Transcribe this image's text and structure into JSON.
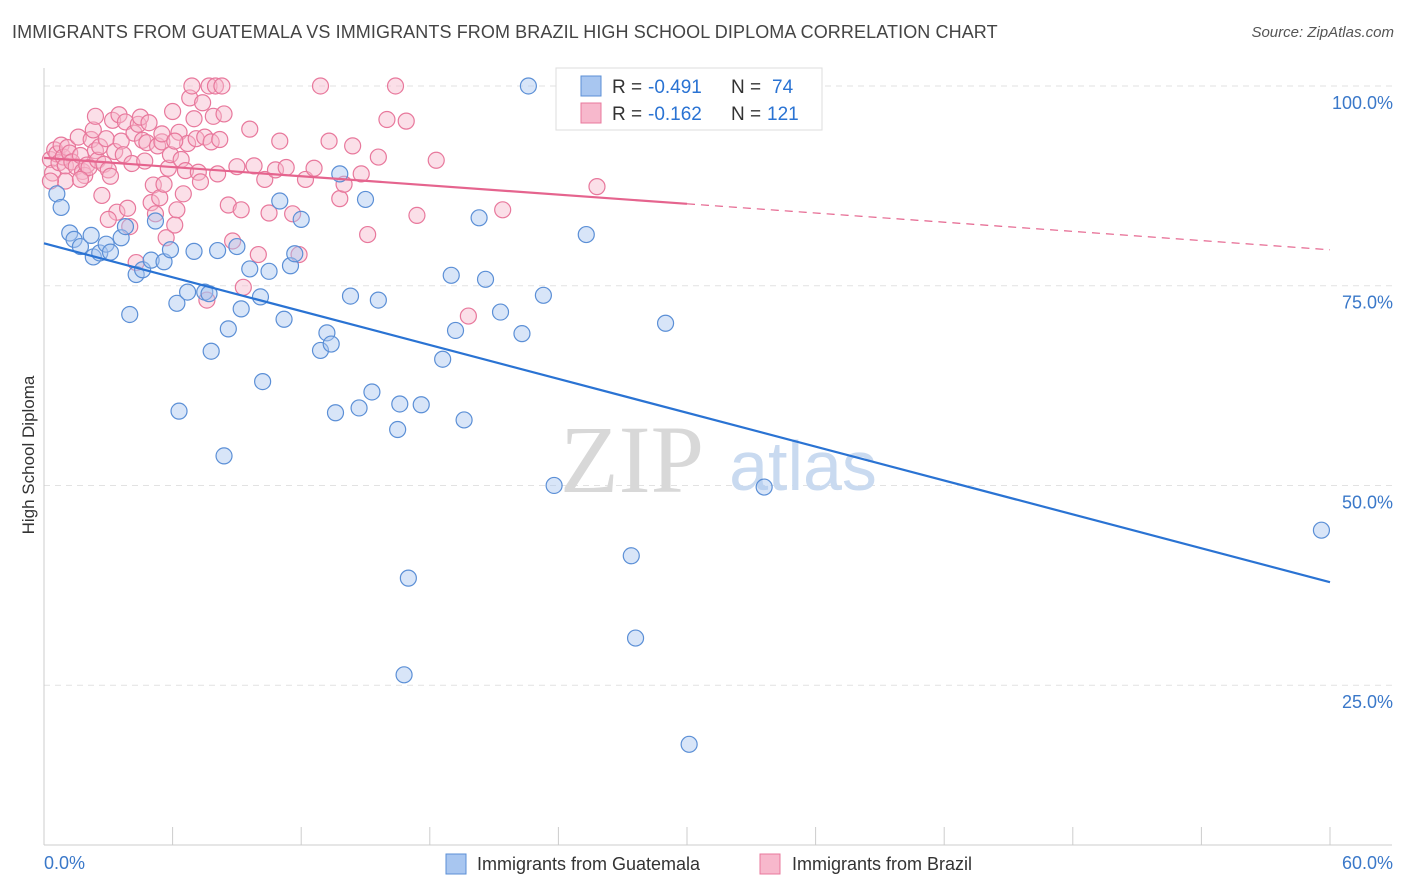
{
  "title": "IMMIGRANTS FROM GUATEMALA VS IMMIGRANTS FROM BRAZIL HIGH SCHOOL DIPLOMA CORRELATION CHART",
  "source": "Source: ZipAtlas.com",
  "watermark": {
    "zip": "ZIP",
    "atlas": "atlas"
  },
  "colors": {
    "blue_fill": "#a8c6f0",
    "blue_stroke": "#5b8fd6",
    "blue_line": "#2a73d3",
    "pink_fill": "#f7b8cc",
    "pink_stroke": "#e8789c",
    "pink_line": "#e5648e",
    "axis_label": "#3a78c9",
    "grid": "#e2e2e2"
  },
  "legend": {
    "rows": [
      {
        "r_label": "R =",
        "r_value": "-0.491",
        "n_label": "N =",
        "n_value": "74",
        "color": "blue"
      },
      {
        "r_label": "R =",
        "r_value": "-0.162",
        "n_label": "N =",
        "n_value": "121",
        "color": "pink"
      }
    ]
  },
  "chart_data": {
    "type": "scatter",
    "title": "IMMIGRANTS FROM GUATEMALA VS IMMIGRANTS FROM BRAZIL HIGH SCHOOL DIPLOMA CORRELATION CHART",
    "xlabel": "",
    "ylabel": "High School Diploma",
    "xlim": [
      0,
      60
    ],
    "ylim": [
      5,
      103
    ],
    "x_tick_labels": [
      "0.0%",
      "60.0%"
    ],
    "y_ticks": [
      25,
      50,
      75,
      100
    ],
    "y_tick_labels": [
      "25.0%",
      "50.0%",
      "75.0%",
      "100.0%"
    ],
    "grid": true,
    "legend_position": "bottom",
    "series": [
      {
        "name": "Immigrants from Guatemala",
        "color": "blue",
        "trend": {
          "x": [
            0,
            60
          ],
          "y": [
            80.3,
            37.9
          ],
          "solid_until": 60
        },
        "points": [
          [
            0.6,
            86.5
          ],
          [
            0.8,
            84.8
          ],
          [
            1.2,
            81.6
          ],
          [
            1.4,
            80.8
          ],
          [
            1.7,
            79.9
          ],
          [
            2.2,
            81.3
          ],
          [
            2.3,
            78.6
          ],
          [
            2.6,
            79.1
          ],
          [
            2.9,
            80.2
          ],
          [
            3.1,
            79.2
          ],
          [
            3.6,
            81.0
          ],
          [
            3.8,
            82.4
          ],
          [
            4.0,
            71.4
          ],
          [
            4.3,
            76.4
          ],
          [
            4.6,
            77.0
          ],
          [
            5.0,
            78.2
          ],
          [
            5.2,
            83.1
          ],
          [
            5.6,
            78.0
          ],
          [
            5.9,
            79.5
          ],
          [
            6.2,
            72.8
          ],
          [
            6.3,
            59.3
          ],
          [
            6.7,
            74.2
          ],
          [
            7.0,
            79.3
          ],
          [
            7.5,
            74.2
          ],
          [
            7.7,
            74.0
          ],
          [
            7.8,
            66.8
          ],
          [
            8.1,
            79.4
          ],
          [
            8.4,
            53.7
          ],
          [
            8.6,
            69.6
          ],
          [
            9.0,
            79.9
          ],
          [
            9.2,
            72.1
          ],
          [
            9.6,
            77.1
          ],
          [
            10.1,
            73.6
          ],
          [
            10.2,
            63.0
          ],
          [
            10.5,
            76.8
          ],
          [
            11.0,
            85.6
          ],
          [
            11.2,
            70.8
          ],
          [
            11.5,
            77.5
          ],
          [
            11.7,
            79.0
          ],
          [
            12.0,
            83.3
          ],
          [
            12.9,
            66.9
          ],
          [
            13.2,
            69.1
          ],
          [
            13.4,
            67.7
          ],
          [
            13.6,
            59.1
          ],
          [
            13.8,
            89.0
          ],
          [
            14.3,
            73.7
          ],
          [
            14.7,
            59.7
          ],
          [
            15.0,
            85.8
          ],
          [
            15.3,
            61.7
          ],
          [
            15.6,
            73.2
          ],
          [
            16.5,
            57.0
          ],
          [
            16.6,
            60.2
          ],
          [
            17.0,
            38.4
          ],
          [
            16.8,
            26.3
          ],
          [
            17.6,
            60.1
          ],
          [
            18.6,
            65.8
          ],
          [
            19.0,
            76.3
          ],
          [
            19.2,
            69.4
          ],
          [
            19.6,
            58.2
          ],
          [
            20.3,
            83.5
          ],
          [
            20.6,
            75.8
          ],
          [
            21.3,
            71.7
          ],
          [
            22.3,
            69.0
          ],
          [
            22.6,
            100.0
          ],
          [
            23.3,
            73.8
          ],
          [
            23.8,
            50.0
          ],
          [
            25.3,
            81.4
          ],
          [
            27.4,
            41.2
          ],
          [
            27.6,
            30.9
          ],
          [
            29.0,
            70.3
          ],
          [
            30.1,
            17.6
          ],
          [
            32.7,
            97.5
          ],
          [
            33.6,
            49.8
          ],
          [
            59.6,
            44.4
          ]
        ]
      },
      {
        "name": "Immigrants from Brazil",
        "color": "pink",
        "trend": {
          "x": [
            0,
            60
          ],
          "y": [
            91.0,
            79.5
          ],
          "solid_until": 30
        },
        "points": [
          [
            0.3,
            90.8
          ],
          [
            0.4,
            89.1
          ],
          [
            0.5,
            92.0
          ],
          [
            0.6,
            91.5
          ],
          [
            0.7,
            90.4
          ],
          [
            0.8,
            92.6
          ],
          [
            0.9,
            91.1
          ],
          [
            1.0,
            90.0
          ],
          [
            1.1,
            92.3
          ],
          [
            1.2,
            91.6
          ],
          [
            1.3,
            90.5
          ],
          [
            1.5,
            89.9
          ],
          [
            1.6,
            93.6
          ],
          [
            1.7,
            91.3
          ],
          [
            1.8,
            89.3
          ],
          [
            1.9,
            88.8
          ],
          [
            2.0,
            90.1
          ],
          [
            2.1,
            89.8
          ],
          [
            2.2,
            93.3
          ],
          [
            2.3,
            94.5
          ],
          [
            2.4,
            91.9
          ],
          [
            2.5,
            90.7
          ],
          [
            2.6,
            92.4
          ],
          [
            2.7,
            86.3
          ],
          [
            2.8,
            90.2
          ],
          [
            2.9,
            93.4
          ],
          [
            3.0,
            89.5
          ],
          [
            3.1,
            88.7
          ],
          [
            3.2,
            95.7
          ],
          [
            3.3,
            91.8
          ],
          [
            3.4,
            84.2
          ],
          [
            3.5,
            96.4
          ],
          [
            3.6,
            93.1
          ],
          [
            3.7,
            91.4
          ],
          [
            3.8,
            95.5
          ],
          [
            3.9,
            84.7
          ],
          [
            4.0,
            82.4
          ],
          [
            4.1,
            90.3
          ],
          [
            4.2,
            94.1
          ],
          [
            4.3,
            77.9
          ],
          [
            4.4,
            95.2
          ],
          [
            4.5,
            96.1
          ],
          [
            4.6,
            93.2
          ],
          [
            4.7,
            90.6
          ],
          [
            4.8,
            92.9
          ],
          [
            4.9,
            95.4
          ],
          [
            5.0,
            85.4
          ],
          [
            5.1,
            87.6
          ],
          [
            5.2,
            84.0
          ],
          [
            5.3,
            92.5
          ],
          [
            5.4,
            86.0
          ],
          [
            5.5,
            93.0
          ],
          [
            5.6,
            87.7
          ],
          [
            5.7,
            81.0
          ],
          [
            5.8,
            89.7
          ],
          [
            5.9,
            91.4
          ],
          [
            6.0,
            96.8
          ],
          [
            6.1,
            82.6
          ],
          [
            6.2,
            84.5
          ],
          [
            6.3,
            94.2
          ],
          [
            6.4,
            90.8
          ],
          [
            6.5,
            86.5
          ],
          [
            6.6,
            89.4
          ],
          [
            6.7,
            92.8
          ],
          [
            6.8,
            98.5
          ],
          [
            6.9,
            100.0
          ],
          [
            7.0,
            95.9
          ],
          [
            7.1,
            93.4
          ],
          [
            7.2,
            89.2
          ],
          [
            7.3,
            88.0
          ],
          [
            7.4,
            97.9
          ],
          [
            7.5,
            93.6
          ],
          [
            7.6,
            73.2
          ],
          [
            7.7,
            100.0
          ],
          [
            7.8,
            93.0
          ],
          [
            7.9,
            96.2
          ],
          [
            8.0,
            100.0
          ],
          [
            8.1,
            89.0
          ],
          [
            8.2,
            93.3
          ],
          [
            8.3,
            100.0
          ],
          [
            8.4,
            96.5
          ],
          [
            8.6,
            85.1
          ],
          [
            8.8,
            80.6
          ],
          [
            9.0,
            89.9
          ],
          [
            9.2,
            84.5
          ],
          [
            9.3,
            74.8
          ],
          [
            9.8,
            90.0
          ],
          [
            10.0,
            78.9
          ],
          [
            10.3,
            88.3
          ],
          [
            10.5,
            84.1
          ],
          [
            10.8,
            89.5
          ],
          [
            11.0,
            93.1
          ],
          [
            11.3,
            89.8
          ],
          [
            11.6,
            84.0
          ],
          [
            11.9,
            78.9
          ],
          [
            12.2,
            88.3
          ],
          [
            12.6,
            89.7
          ],
          [
            12.9,
            100.0
          ],
          [
            13.3,
            93.1
          ],
          [
            13.8,
            85.9
          ],
          [
            14.0,
            87.7
          ],
          [
            14.4,
            92.5
          ],
          [
            14.8,
            89.0
          ],
          [
            15.1,
            81.4
          ],
          [
            15.6,
            91.1
          ],
          [
            16.0,
            95.8
          ],
          [
            16.4,
            100.0
          ],
          [
            16.9,
            95.6
          ],
          [
            17.4,
            83.8
          ],
          [
            18.3,
            90.7
          ],
          [
            19.8,
            71.2
          ],
          [
            21.4,
            84.5
          ],
          [
            25.8,
            87.4
          ],
          [
            1.0,
            88.1
          ],
          [
            2.4,
            96.2
          ],
          [
            3.0,
            83.3
          ],
          [
            5.5,
            94.0
          ],
          [
            6.1,
            93.1
          ],
          [
            0.3,
            88.1
          ],
          [
            1.7,
            88.3
          ],
          [
            9.6,
            94.6
          ]
        ]
      }
    ]
  }
}
